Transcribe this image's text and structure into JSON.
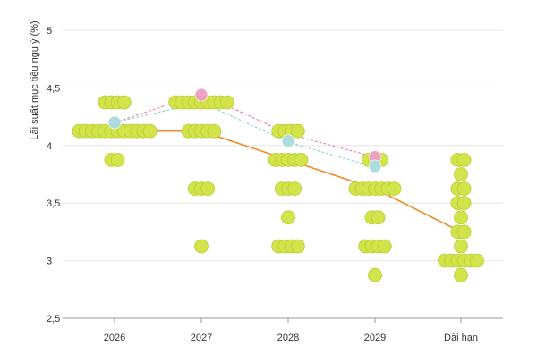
{
  "chart_data": {
    "type": "scatter",
    "title": "",
    "ylabel": "Lãi suất mục tiêu ngụ ý (%)",
    "xlabel": "",
    "categories": [
      "2026",
      "2027",
      "2028",
      "2029",
      "Dài hạn"
    ],
    "ylim": [
      2.5,
      5
    ],
    "yticks": [
      {
        "value": 2.5,
        "label": "2,5"
      },
      {
        "value": 3,
        "label": "3"
      },
      {
        "value": 3.5,
        "label": "3,5"
      },
      {
        "value": 4,
        "label": "4"
      },
      {
        "value": 4.5,
        "label": "4,5"
      },
      {
        "value": 5,
        "label": "5"
      }
    ],
    "grid": true,
    "dot_plot": [
      {
        "category": "2026",
        "levels": [
          {
            "value": 4.375,
            "count": 4
          },
          {
            "value": 4.125,
            "count": 12
          },
          {
            "value": 3.875,
            "count": 2
          }
        ]
      },
      {
        "category": "2027",
        "levels": [
          {
            "value": 4.375,
            "count": 9
          },
          {
            "value": 4.125,
            "count": 5
          },
          {
            "value": 3.625,
            "count": 3
          },
          {
            "value": 3.125,
            "count": 1
          }
        ]
      },
      {
        "category": "2028",
        "levels": [
          {
            "value": 4.125,
            "count": 4
          },
          {
            "value": 3.875,
            "count": 5
          },
          {
            "value": 3.625,
            "count": 3
          },
          {
            "value": 3.375,
            "count": 1
          },
          {
            "value": 3.125,
            "count": 4
          }
        ]
      },
      {
        "category": "2029",
        "levels": [
          {
            "value": 3.875,
            "count": 3
          },
          {
            "value": 3.625,
            "count": 7
          },
          {
            "value": 3.375,
            "count": 2
          },
          {
            "value": 3.125,
            "count": 4
          },
          {
            "value": 2.875,
            "count": 1
          }
        ]
      },
      {
        "category": "Dài hạn",
        "levels": [
          {
            "value": 3.875,
            "count": 2
          },
          {
            "value": 3.75,
            "count": 1
          },
          {
            "value": 3.625,
            "count": 2
          },
          {
            "value": 3.5,
            "count": 2
          },
          {
            "value": 3.375,
            "count": 1
          },
          {
            "value": 3.25,
            "count": 2
          },
          {
            "value": 3.125,
            "count": 1
          },
          {
            "value": 3.0,
            "count": 6
          },
          {
            "value": 2.875,
            "count": 1
          }
        ]
      }
    ],
    "series": [
      {
        "style": "solid",
        "color": "#f08a24",
        "points": [
          [
            "2026",
            4.125
          ],
          [
            "2027",
            4.125
          ],
          [
            "2028",
            3.875
          ],
          [
            "2029",
            3.625
          ],
          [
            "Dài hạn",
            3.25
          ]
        ]
      },
      {
        "style": "dashed",
        "color": "#7fd0d3",
        "points": [
          [
            "2026",
            4.2
          ],
          [
            "2027",
            4.375
          ],
          [
            "2028",
            4.03
          ],
          [
            "2029",
            3.81
          ]
        ]
      },
      {
        "style": "dashed",
        "color": "#ea6fa3",
        "points": [
          [
            "2026",
            4.2
          ],
          [
            "2027",
            4.45
          ],
          [
            "2028",
            4.1
          ],
          [
            "2029",
            3.9
          ]
        ]
      }
    ],
    "markers": [
      {
        "category": "2026",
        "value": 4.2,
        "color": "#a9dbe0"
      },
      {
        "category": "2027",
        "value": 4.44,
        "color": "#ee9fc4"
      },
      {
        "category": "2028",
        "value": 4.04,
        "color": "#a9dbe0"
      },
      {
        "category": "2029",
        "value": 3.9,
        "color": "#ee9fc4"
      },
      {
        "category": "2029",
        "value": 3.82,
        "color": "#a9dbe0"
      }
    ],
    "colors": {
      "dot_fill": "#d2e449",
      "dot_stroke": "#b9cc35",
      "grid": "#e6e6e6",
      "axis": "#9a9a9a"
    }
  }
}
